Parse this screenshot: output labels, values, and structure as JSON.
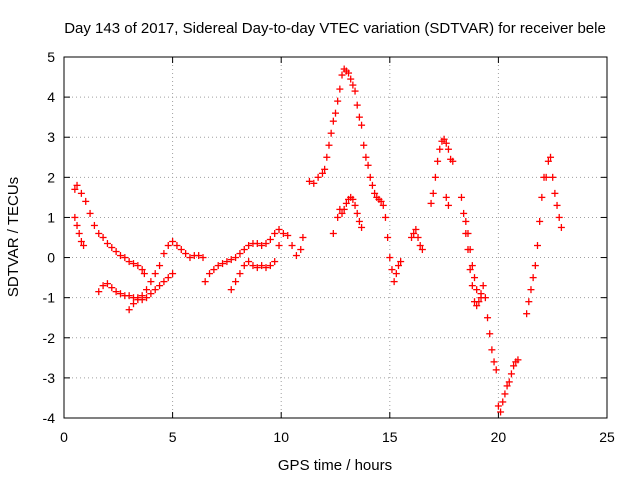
{
  "chart_data": {
    "type": "scatter",
    "title": "Day 143 of 2017, Sidereal Day-to-day VTEC variation (SDTVAR) for receiver bele",
    "xlabel": "GPS time / hours",
    "ylabel": "SDTVAR / TECUs",
    "xlim": [
      0,
      25
    ],
    "ylim": [
      -4,
      5
    ],
    "xticks": [
      "0",
      "5",
      "10",
      "15",
      "20",
      "25"
    ],
    "yticks": [
      "-4",
      "-3",
      "-2",
      "-1",
      "0",
      "1",
      "2",
      "3",
      "4",
      "5"
    ],
    "grid": true,
    "marker": "+",
    "color": "#ff0000",
    "series": [
      {
        "points": [
          [
            0.5,
            1.7
          ],
          [
            0.6,
            1.8
          ],
          [
            0.8,
            1.6
          ],
          [
            1.0,
            1.4
          ],
          [
            1.2,
            1.1
          ],
          [
            1.4,
            0.8
          ],
          [
            1.6,
            0.6
          ],
          [
            1.8,
            0.5
          ],
          [
            2.0,
            0.35
          ],
          [
            2.2,
            0.25
          ],
          [
            2.4,
            0.15
          ],
          [
            2.6,
            0.05
          ],
          [
            2.8,
            0.0
          ],
          [
            3.0,
            -0.1
          ],
          [
            3.2,
            -0.15
          ],
          [
            3.4,
            -0.2
          ],
          [
            3.6,
            -0.3
          ],
          [
            3.7,
            -0.4
          ],
          [
            0.5,
            1.0
          ],
          [
            0.6,
            0.8
          ],
          [
            0.7,
            0.6
          ],
          [
            0.8,
            0.4
          ],
          [
            0.9,
            0.3
          ],
          [
            1.6,
            -0.85
          ],
          [
            1.8,
            -0.7
          ],
          [
            2.0,
            -0.65
          ],
          [
            2.2,
            -0.75
          ],
          [
            2.4,
            -0.85
          ],
          [
            2.6,
            -0.9
          ],
          [
            2.8,
            -0.95
          ],
          [
            3.0,
            -0.95
          ],
          [
            3.2,
            -1.0
          ],
          [
            3.4,
            -1.0
          ],
          [
            3.6,
            -1.05
          ],
          [
            3.8,
            -1.0
          ],
          [
            4.0,
            -0.9
          ],
          [
            4.2,
            -0.8
          ],
          [
            4.4,
            -0.7
          ],
          [
            4.6,
            -0.6
          ],
          [
            4.8,
            -0.5
          ],
          [
            5.0,
            -0.4
          ],
          [
            3.0,
            -1.3
          ],
          [
            3.2,
            -1.15
          ],
          [
            3.4,
            -1.05
          ],
          [
            3.6,
            -0.95
          ],
          [
            3.8,
            -0.8
          ],
          [
            4.0,
            -0.6
          ],
          [
            4.2,
            -0.4
          ],
          [
            4.4,
            -0.2
          ],
          [
            4.6,
            0.1
          ],
          [
            4.8,
            0.3
          ],
          [
            5.0,
            0.4
          ],
          [
            5.2,
            0.3
          ],
          [
            5.4,
            0.2
          ],
          [
            5.6,
            0.1
          ],
          [
            5.8,
            0.0
          ],
          [
            6.0,
            0.05
          ],
          [
            6.2,
            0.05
          ],
          [
            6.4,
            0.0
          ],
          [
            6.5,
            -0.6
          ],
          [
            6.7,
            -0.4
          ],
          [
            6.9,
            -0.3
          ],
          [
            7.1,
            -0.2
          ],
          [
            7.3,
            -0.15
          ],
          [
            7.5,
            -0.1
          ],
          [
            7.7,
            -0.05
          ],
          [
            7.9,
            0.0
          ],
          [
            8.1,
            0.1
          ],
          [
            8.3,
            0.2
          ],
          [
            8.5,
            0.3
          ],
          [
            8.7,
            0.35
          ],
          [
            8.9,
            0.35
          ],
          [
            9.1,
            0.3
          ],
          [
            9.3,
            0.35
          ],
          [
            9.5,
            0.45
          ],
          [
            9.7,
            0.6
          ],
          [
            9.9,
            0.7
          ],
          [
            7.7,
            -0.8
          ],
          [
            7.9,
            -0.6
          ],
          [
            8.1,
            -0.4
          ],
          [
            8.3,
            -0.2
          ],
          [
            8.5,
            -0.1
          ],
          [
            8.7,
            -0.2
          ],
          [
            8.9,
            -0.25
          ],
          [
            9.1,
            -0.2
          ],
          [
            9.3,
            -0.25
          ],
          [
            9.5,
            -0.2
          ],
          [
            9.7,
            -0.1
          ],
          [
            9.9,
            0.3
          ],
          [
            10.1,
            0.6
          ],
          [
            10.3,
            0.55
          ],
          [
            10.5,
            0.3
          ],
          [
            10.7,
            0.05
          ],
          [
            10.9,
            0.2
          ],
          [
            11.0,
            0.5
          ],
          [
            11.3,
            1.9
          ],
          [
            11.5,
            1.85
          ],
          [
            11.7,
            2.0
          ],
          [
            11.9,
            2.1
          ],
          [
            12.0,
            2.2
          ],
          [
            12.1,
            2.5
          ],
          [
            12.2,
            2.8
          ],
          [
            12.3,
            3.1
          ],
          [
            12.4,
            3.4
          ],
          [
            12.5,
            3.6
          ],
          [
            12.6,
            3.9
          ],
          [
            12.7,
            4.2
          ],
          [
            12.8,
            4.55
          ],
          [
            12.9,
            4.7
          ],
          [
            13.0,
            4.65
          ],
          [
            13.1,
            4.6
          ],
          [
            13.2,
            4.45
          ],
          [
            13.3,
            4.3
          ],
          [
            13.4,
            4.15
          ],
          [
            13.5,
            3.8
          ],
          [
            13.6,
            3.5
          ],
          [
            13.7,
            3.3
          ],
          [
            13.8,
            2.8
          ],
          [
            13.9,
            2.5
          ],
          [
            14.0,
            2.3
          ],
          [
            14.1,
            2.0
          ],
          [
            14.2,
            1.8
          ],
          [
            14.3,
            1.6
          ],
          [
            14.4,
            1.5
          ],
          [
            14.5,
            1.45
          ],
          [
            14.6,
            1.4
          ],
          [
            14.7,
            1.3
          ],
          [
            14.8,
            1.0
          ],
          [
            14.9,
            0.5
          ],
          [
            15.0,
            0.0
          ],
          [
            15.1,
            -0.3
          ],
          [
            15.2,
            -0.6
          ],
          [
            15.3,
            -0.4
          ],
          [
            15.4,
            -0.2
          ],
          [
            15.5,
            -0.1
          ],
          [
            12.4,
            0.6
          ],
          [
            12.6,
            1.0
          ],
          [
            12.7,
            1.2
          ],
          [
            12.8,
            1.1
          ],
          [
            12.9,
            1.2
          ],
          [
            13.0,
            1.35
          ],
          [
            13.1,
            1.45
          ],
          [
            13.2,
            1.5
          ],
          [
            13.3,
            1.45
          ],
          [
            13.4,
            1.3
          ],
          [
            13.5,
            1.1
          ],
          [
            13.6,
            0.9
          ],
          [
            13.7,
            0.75
          ],
          [
            16.0,
            0.5
          ],
          [
            16.1,
            0.6
          ],
          [
            16.2,
            0.7
          ],
          [
            16.3,
            0.5
          ],
          [
            16.4,
            0.3
          ],
          [
            16.5,
            0.2
          ],
          [
            16.9,
            1.35
          ],
          [
            17.0,
            1.6
          ],
          [
            17.1,
            2.0
          ],
          [
            17.2,
            2.4
          ],
          [
            17.3,
            2.7
          ],
          [
            17.4,
            2.9
          ],
          [
            17.5,
            2.95
          ],
          [
            17.6,
            2.85
          ],
          [
            17.7,
            2.7
          ],
          [
            17.8,
            2.45
          ],
          [
            17.9,
            2.4
          ],
          [
            17.6,
            1.5
          ],
          [
            17.7,
            1.3
          ],
          [
            18.3,
            1.5
          ],
          [
            18.4,
            1.1
          ],
          [
            18.5,
            0.6
          ],
          [
            18.6,
            0.2
          ],
          [
            18.7,
            -0.3
          ],
          [
            18.8,
            -0.7
          ],
          [
            18.9,
            -1.1
          ],
          [
            19.0,
            -1.2
          ],
          [
            19.1,
            -1.1
          ],
          [
            19.2,
            -0.9
          ],
          [
            19.3,
            -0.7
          ],
          [
            19.4,
            -1.0
          ],
          [
            19.5,
            -1.5
          ],
          [
            19.6,
            -1.9
          ],
          [
            19.7,
            -2.3
          ],
          [
            19.8,
            -2.6
          ],
          [
            19.9,
            -2.8
          ],
          [
            18.5,
            0.9
          ],
          [
            18.6,
            0.6
          ],
          [
            18.7,
            0.2
          ],
          [
            18.8,
            -0.2
          ],
          [
            18.9,
            -0.5
          ],
          [
            19.0,
            -0.8
          ],
          [
            19.2,
            -1.0
          ],
          [
            20.0,
            -3.7
          ],
          [
            20.1,
            -3.85
          ],
          [
            20.2,
            -3.6
          ],
          [
            20.3,
            -3.4
          ],
          [
            20.4,
            -3.2
          ],
          [
            20.5,
            -3.1
          ],
          [
            20.6,
            -2.9
          ],
          [
            20.7,
            -2.7
          ],
          [
            20.8,
            -2.6
          ],
          [
            20.9,
            -2.55
          ],
          [
            21.3,
            -1.4
          ],
          [
            21.4,
            -1.1
          ],
          [
            21.5,
            -0.8
          ],
          [
            21.6,
            -0.5
          ],
          [
            21.7,
            -0.2
          ],
          [
            21.8,
            0.3
          ],
          [
            21.9,
            0.9
          ],
          [
            22.0,
            1.5
          ],
          [
            22.1,
            2.0
          ],
          [
            22.2,
            2.0
          ],
          [
            22.3,
            2.4
          ],
          [
            22.4,
            2.5
          ],
          [
            22.5,
            2.0
          ],
          [
            22.6,
            1.6
          ],
          [
            22.7,
            1.3
          ],
          [
            22.8,
            1.0
          ],
          [
            22.9,
            0.75
          ]
        ]
      }
    ]
  }
}
